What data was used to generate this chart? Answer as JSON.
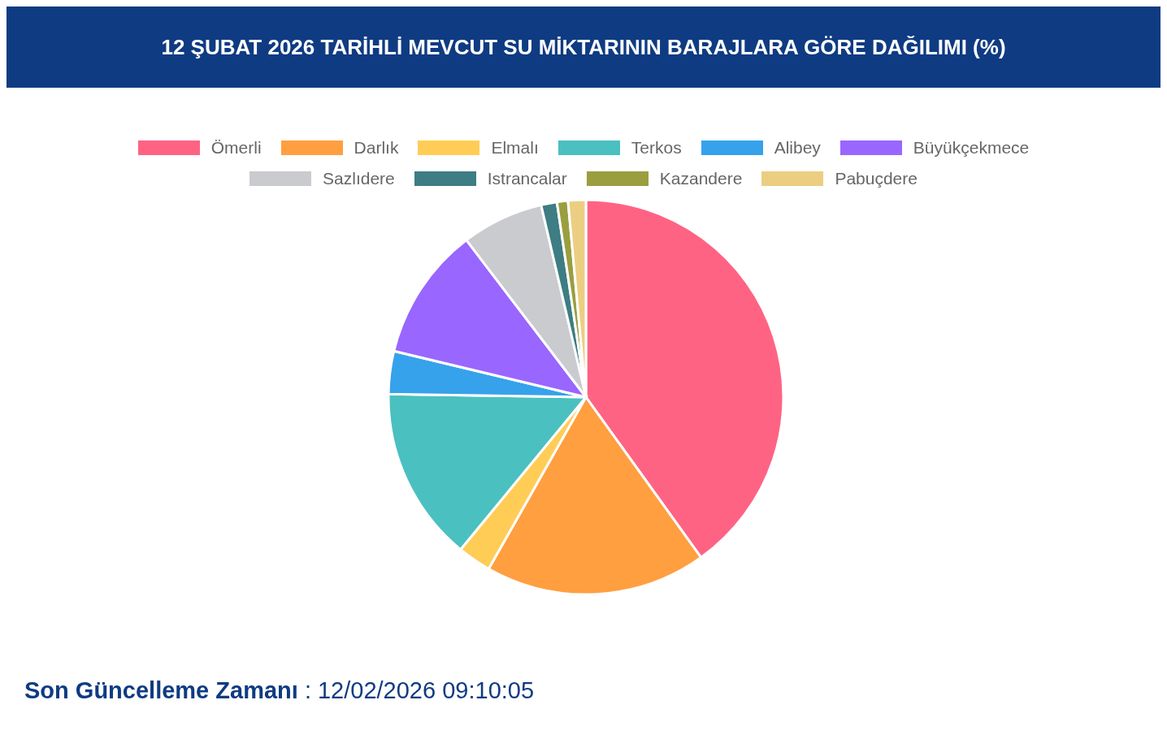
{
  "chart_data": {
    "type": "pie",
    "title": "12 ŞUBAT 2026 TARİHLİ MEVCUT SU MİKTARININ BARAJLARA GÖRE DAĞILIMI (%)",
    "categories": [
      "Ömerli",
      "Darlık",
      "Elmalı",
      "Terkos",
      "Alibey",
      "Büyükçekmece",
      "Sazlıdere",
      "Istrancalar",
      "Kazandere",
      "Pabuçdere"
    ],
    "values": [
      40.1,
      18.1,
      2.75,
      14.3,
      3.5,
      10.9,
      6.7,
      1.3,
      0.9,
      1.45
    ],
    "colors": [
      "#ff6384",
      "#ff9f40",
      "#ffcd56",
      "#4bc0c0",
      "#36a2eb",
      "#9966ff",
      "#c9cbcf",
      "#3d7d83",
      "#9a9e3f",
      "#ecce82"
    ],
    "legend": "top",
    "annotations": [
      "Son Güncelleme Zamanı : 12/02/2026 09:10:05"
    ]
  }
}
